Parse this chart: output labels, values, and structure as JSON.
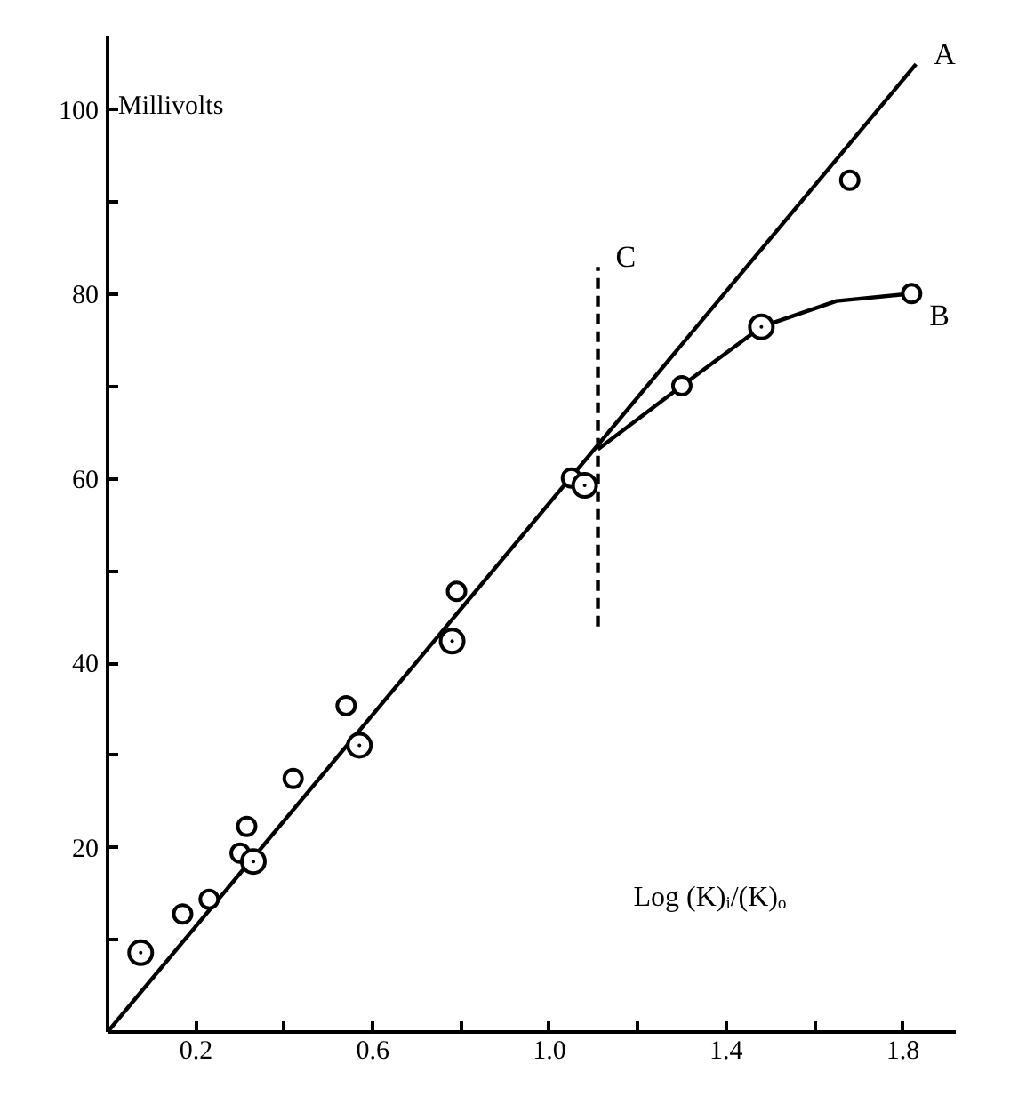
{
  "chart_data": {
    "type": "scatter",
    "ylabel": "Millivolts",
    "xlabel": "Log (K)ᵢ/(K)ₒ",
    "xlim": [
      0,
      1.92
    ],
    "ylim": [
      0,
      108
    ],
    "xticks": [
      {
        "value": 0.2,
        "label": "0.2"
      },
      {
        "value": 0.4,
        "label": null
      },
      {
        "value": 0.6,
        "label": "0.6"
      },
      {
        "value": 0.8,
        "label": null
      },
      {
        "value": 1.0,
        "label": "1.0"
      },
      {
        "value": 1.2,
        "label": null
      },
      {
        "value": 1.4,
        "label": "1.4"
      },
      {
        "value": 1.6,
        "label": null
      },
      {
        "value": 1.8,
        "label": "1.8"
      }
    ],
    "yticks": [
      {
        "value": 10,
        "label": null
      },
      20,
      {
        "value": 30,
        "label": null
      },
      40,
      {
        "value": 50,
        "label": null
      },
      60,
      {
        "value": 70,
        "label": null
      },
      80,
      {
        "value": 90,
        "label": null
      },
      100
    ],
    "grid": false,
    "marker": "circle",
    "series": [
      {
        "color": "#000000",
        "x": [
          0.17,
          0.23,
          0.3,
          0.315,
          0.42,
          0.54,
          0.79,
          1.05,
          1.68,
          1.3,
          1.82
        ],
        "values": [
          12.8,
          14.4,
          19.4,
          22.3,
          27.5,
          35.4,
          47.8,
          60.1,
          92.4,
          70.1,
          80.1
        ]
      },
      {
        "color": "#000000",
        "x": [
          0.075,
          0.33,
          0.57,
          0.78,
          1.08,
          1.48
        ],
        "values": [
          8.6,
          18.5,
          31.1,
          42.4,
          59.3,
          76.5
        ]
      },
      {
        "name": "A",
        "type": "line",
        "color": "#000000",
        "marker": "none",
        "x": [
          0,
          1.83
        ],
        "values": [
          0,
          105
        ]
      },
      {
        "name": "B",
        "type": "line",
        "color": "#000000",
        "marker": "none",
        "x": [
          1.11,
          1.3,
          1.48,
          1.65,
          1.82
        ],
        "values": [
          63.2,
          70.1,
          76.5,
          79.3,
          80.1
        ]
      },
      {
        "name": "C",
        "type": "line",
        "color": "#000000",
        "marker": "none",
        "line_style": "dashed",
        "x": [
          1.11,
          1.11
        ],
        "values": [
          44,
          83
        ]
      }
    ]
  }
}
